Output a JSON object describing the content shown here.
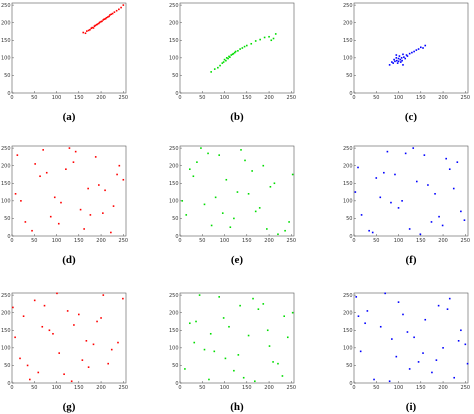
{
  "chart_data": [
    {
      "type": "scatter",
      "label": "(a)",
      "color": "#ff0000",
      "x": [
        160,
        165,
        168,
        172,
        175,
        178,
        180,
        183,
        185,
        187,
        190,
        192,
        195,
        197,
        200,
        202,
        205,
        207,
        210,
        212,
        215,
        218,
        220,
        223,
        226,
        230,
        235,
        240,
        245,
        250
      ],
      "y": [
        172,
        170,
        176,
        178,
        180,
        184,
        186,
        185,
        190,
        192,
        194,
        196,
        198,
        201,
        203,
        204,
        208,
        210,
        211,
        214,
        216,
        218,
        222,
        224,
        226,
        230,
        234,
        238,
        243,
        250
      ],
      "xlim": [
        0,
        256
      ],
      "ylim": [
        0,
        256
      ],
      "xticks": [
        0,
        50,
        100,
        150,
        200,
        250
      ],
      "yticks": [
        0,
        50,
        100,
        150,
        200,
        250
      ]
    },
    {
      "type": "scatter",
      "label": "(b)",
      "color": "#00dd00",
      "x": [
        70,
        78,
        85,
        90,
        95,
        98,
        100,
        103,
        105,
        108,
        110,
        112,
        115,
        118,
        120,
        123,
        125,
        130,
        135,
        140,
        145,
        150,
        160,
        170,
        180,
        190,
        200,
        205,
        210,
        215
      ],
      "y": [
        60,
        68,
        72,
        78,
        85,
        88,
        95,
        92,
        100,
        98,
        104,
        102,
        108,
        110,
        112,
        115,
        118,
        120,
        125,
        128,
        132,
        135,
        140,
        148,
        152,
        158,
        160,
        150,
        155,
        168
      ],
      "xlim": [
        0,
        256
      ],
      "ylim": [
        0,
        256
      ],
      "xticks": [
        0,
        50,
        100,
        150,
        200,
        250
      ],
      "yticks": [
        0,
        50,
        100,
        150,
        200,
        250
      ]
    },
    {
      "type": "scatter",
      "label": "(c)",
      "color": "#0000ff",
      "x": [
        80,
        85,
        88,
        90,
        92,
        95,
        96,
        98,
        100,
        100,
        102,
        104,
        105,
        107,
        108,
        110,
        112,
        115,
        118,
        120,
        125,
        130,
        135,
        140,
        145,
        150,
        155,
        160,
        110,
        95
      ],
      "y": [
        80,
        88,
        85,
        95,
        90,
        100,
        92,
        85,
        98,
        90,
        105,
        95,
        88,
        100,
        92,
        110,
        102,
        98,
        108,
        105,
        112,
        115,
        118,
        122,
        125,
        130,
        128,
        135,
        80,
        108
      ],
      "xlim": [
        0,
        256
      ],
      "ylim": [
        0,
        256
      ],
      "xticks": [
        0,
        50,
        100,
        150,
        200,
        250
      ],
      "yticks": [
        0,
        50,
        100,
        150,
        200,
        250
      ]
    },
    {
      "type": "scatter",
      "label": "(d)",
      "color": "#ff0000",
      "x": [
        12,
        45,
        78,
        110,
        143,
        176,
        209,
        241,
        30,
        63,
        96,
        129,
        162,
        195,
        228,
        8,
        52,
        87,
        121,
        154,
        188,
        222,
        250,
        20,
        70,
        105,
        138,
        171,
        204,
        236
      ],
      "y": [
        230,
        15,
        180,
        95,
        240,
        60,
        130,
        200,
        40,
        170,
        110,
        250,
        20,
        145,
        85,
        120,
        205,
        55,
        190,
        75,
        225,
        10,
        160,
        100,
        245,
        35,
        210,
        135,
        65,
        175
      ],
      "xlim": [
        0,
        256
      ],
      "ylim": [
        0,
        256
      ],
      "xticks": [
        0,
        50,
        100,
        150,
        200,
        250
      ],
      "yticks": [
        0,
        50,
        100,
        150,
        200,
        250
      ]
    },
    {
      "type": "scatter",
      "label": "(e)",
      "color": "#00dd00",
      "x": [
        5,
        38,
        71,
        104,
        137,
        170,
        203,
        236,
        22,
        55,
        88,
        121,
        154,
        187,
        220,
        253,
        14,
        47,
        80,
        113,
        146,
        179,
        212,
        245,
        30,
        63,
        96,
        129,
        162,
        195
      ],
      "y": [
        100,
        210,
        30,
        160,
        245,
        70,
        140,
        15,
        190,
        90,
        230,
        50,
        120,
        200,
        5,
        175,
        60,
        250,
        110,
        25,
        215,
        80,
        150,
        40,
        170,
        235,
        65,
        125,
        185,
        20
      ],
      "xlim": [
        0,
        256
      ],
      "ylim": [
        0,
        256
      ],
      "xticks": [
        0,
        50,
        100,
        150,
        200,
        250
      ],
      "yticks": [
        0,
        50,
        100,
        150,
        200,
        250
      ]
    },
    {
      "type": "scatter",
      "label": "(f)",
      "color": "#0000ff",
      "x": [
        248,
        215,
        182,
        149,
        116,
        83,
        50,
        17,
        232,
        199,
        166,
        133,
        100,
        67,
        34,
        3,
        240,
        207,
        174,
        141,
        108,
        75,
        42,
        9,
        224,
        191,
        158,
        125,
        92,
        59
      ],
      "y": [
        45,
        190,
        120,
        5,
        235,
        95,
        165,
        60,
        210,
        30,
        145,
        250,
        80,
        180,
        15,
        125,
        70,
        220,
        40,
        155,
        100,
        240,
        10,
        195,
        135,
        55,
        230,
        20,
        175,
        110
      ],
      "xlim": [
        0,
        256
      ],
      "ylim": [
        0,
        256
      ],
      "xticks": [
        0,
        50,
        100,
        150,
        200,
        250
      ],
      "yticks": [
        0,
        50,
        100,
        150,
        200,
        250
      ]
    },
    {
      "type": "scatter",
      "label": "(g)",
      "color": "#ff0000",
      "x": [
        18,
        51,
        84,
        117,
        150,
        183,
        216,
        249,
        7,
        40,
        73,
        106,
        139,
        172,
        205,
        238,
        26,
        59,
        92,
        125,
        158,
        191,
        224,
        2,
        35,
        68,
        101,
        134,
        167,
        200
      ],
      "y": [
        70,
        235,
        150,
        25,
        195,
        110,
        55,
        240,
        130,
        10,
        220,
        85,
        165,
        45,
        250,
        115,
        190,
        30,
        140,
        205,
        65,
        175,
        95,
        215,
        50,
        160,
        255,
        5,
        120,
        185
      ],
      "xlim": [
        0,
        256
      ],
      "ylim": [
        0,
        256
      ],
      "xticks": [
        0,
        50,
        100,
        150,
        200,
        250
      ],
      "yticks": [
        0,
        50,
        100,
        150,
        200,
        250
      ]
    },
    {
      "type": "scatter",
      "label": "(h)",
      "color": "#00dd00",
      "x": [
        230,
        197,
        164,
        131,
        98,
        65,
        32,
        253,
        220,
        187,
        154,
        121,
        88,
        55,
        22,
        242,
        209,
        176,
        143,
        110,
        77,
        44,
        11,
        234,
        201,
        168,
        135,
        102,
        69,
        36
      ],
      "y": [
        20,
        150,
        240,
        80,
        185,
        10,
        115,
        200,
        55,
        225,
        135,
        35,
        245,
        95,
        170,
        130,
        60,
        210,
        15,
        160,
        90,
        250,
        40,
        190,
        105,
        5,
        220,
        70,
        140,
        175
      ],
      "xlim": [
        0,
        256
      ],
      "ylim": [
        0,
        256
      ],
      "xticks": [
        0,
        50,
        100,
        150,
        200,
        250
      ],
      "yticks": [
        0,
        50,
        100,
        150,
        200,
        250
      ]
    },
    {
      "type": "scatter",
      "label": "(i)",
      "color": "#0000ff",
      "x": [
        60,
        125,
        190,
        250,
        5,
        95,
        160,
        225,
        30,
        85,
        145,
        215,
        15,
        110,
        175,
        240,
        45,
        100,
        200,
        70,
        135,
        255,
        25,
        155,
        210,
        80,
        120,
        185,
        10,
        235
      ],
      "y": [
        160,
        40,
        220,
        110,
        245,
        75,
        180,
        15,
        205,
        125,
        60,
        240,
        90,
        195,
        30,
        150,
        10,
        230,
        100,
        255,
        130,
        55,
        170,
        85,
        210,
        5,
        145,
        65,
        190,
        120
      ],
      "xlim": [
        0,
        256
      ],
      "ylim": [
        0,
        256
      ],
      "xticks": [
        0,
        50,
        100,
        150,
        200,
        250
      ],
      "yticks": [
        0,
        50,
        100,
        150,
        200,
        250
      ]
    }
  ]
}
